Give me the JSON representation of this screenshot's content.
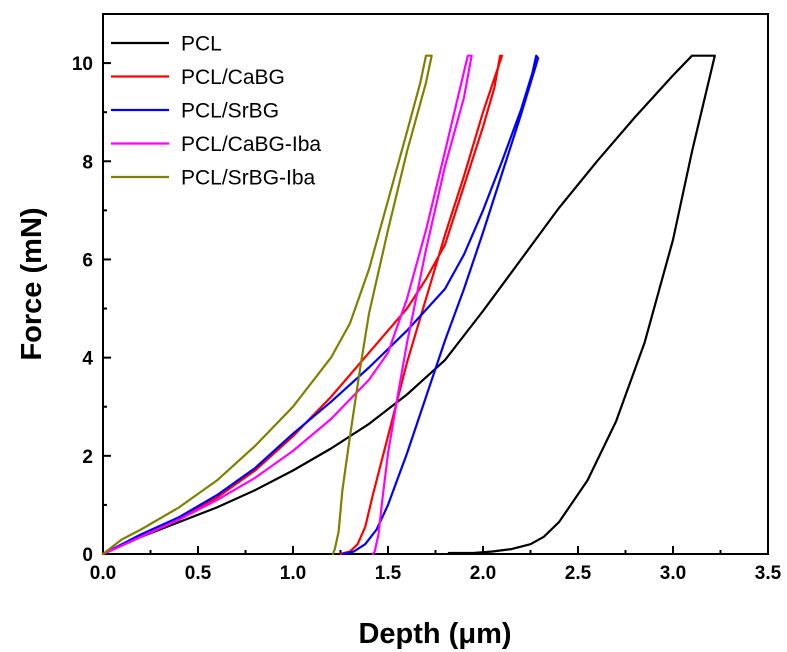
{
  "chart_data": {
    "type": "line",
    "xlabel": "Depth (μm)",
    "ylabel": "Force (mN)",
    "xlim": [
      0,
      3.5
    ],
    "ylim": [
      0,
      11
    ],
    "xticks": [
      "0.0",
      "0.5",
      "1.0",
      "1.5",
      "2.0",
      "2.5",
      "3.0",
      "3.5"
    ],
    "yticks": [
      "0",
      "2",
      "4",
      "6",
      "8",
      "10"
    ],
    "grid": false,
    "legend_position": "top-left",
    "series": [
      {
        "name": "PCL",
        "color": "#000000",
        "points": [
          [
            0,
            0
          ],
          [
            0.2,
            0.35
          ],
          [
            0.4,
            0.65
          ],
          [
            0.6,
            0.95
          ],
          [
            0.8,
            1.3
          ],
          [
            1.0,
            1.7
          ],
          [
            1.2,
            2.15
          ],
          [
            1.4,
            2.65
          ],
          [
            1.6,
            3.25
          ],
          [
            1.8,
            3.95
          ],
          [
            1.9,
            4.45
          ],
          [
            2.0,
            4.95
          ],
          [
            2.2,
            6.0
          ],
          [
            2.4,
            7.05
          ],
          [
            2.6,
            8.0
          ],
          [
            2.8,
            8.9
          ],
          [
            3.0,
            9.75
          ],
          [
            3.1,
            10.15
          ],
          [
            3.22,
            10.15
          ],
          [
            3.1,
            8.2
          ],
          [
            3.0,
            6.4
          ],
          [
            2.85,
            4.3
          ],
          [
            2.7,
            2.7
          ],
          [
            2.55,
            1.5
          ],
          [
            2.4,
            0.65
          ],
          [
            2.32,
            0.35
          ],
          [
            2.25,
            0.2
          ],
          [
            2.15,
            0.1
          ],
          [
            2.05,
            0.05
          ],
          [
            1.95,
            0.02
          ],
          [
            1.82,
            0.02
          ]
        ]
      },
      {
        "name": "PCL/CaBG",
        "color": "#ff0000",
        "points": [
          [
            0,
            0
          ],
          [
            0.2,
            0.35
          ],
          [
            0.4,
            0.7
          ],
          [
            0.6,
            1.15
          ],
          [
            0.8,
            1.7
          ],
          [
            1.0,
            2.4
          ],
          [
            1.2,
            3.2
          ],
          [
            1.4,
            4.1
          ],
          [
            1.6,
            5.0
          ],
          [
            1.7,
            5.6
          ],
          [
            1.8,
            6.3
          ],
          [
            1.9,
            7.5
          ],
          [
            2.0,
            8.7
          ],
          [
            2.06,
            9.5
          ],
          [
            2.09,
            10.15
          ],
          [
            2.1,
            10.15
          ],
          [
            2.0,
            9.0
          ],
          [
            1.9,
            7.7
          ],
          [
            1.8,
            6.5
          ],
          [
            1.7,
            5.2
          ],
          [
            1.6,
            3.9
          ],
          [
            1.5,
            2.4
          ],
          [
            1.42,
            1.2
          ],
          [
            1.38,
            0.55
          ],
          [
            1.34,
            0.2
          ],
          [
            1.3,
            0.05
          ],
          [
            1.25,
            0.0
          ]
        ]
      },
      {
        "name": "PCL/SrBG",
        "color": "#0000ff",
        "points": [
          [
            0,
            0
          ],
          [
            0.2,
            0.4
          ],
          [
            0.4,
            0.75
          ],
          [
            0.6,
            1.2
          ],
          [
            0.8,
            1.75
          ],
          [
            1.0,
            2.45
          ],
          [
            1.2,
            3.1
          ],
          [
            1.4,
            3.8
          ],
          [
            1.6,
            4.55
          ],
          [
            1.8,
            5.4
          ],
          [
            1.9,
            6.1
          ],
          [
            2.0,
            7.0
          ],
          [
            2.1,
            8.0
          ],
          [
            2.2,
            9.05
          ],
          [
            2.26,
            9.8
          ],
          [
            2.28,
            10.15
          ],
          [
            2.29,
            10.1
          ],
          [
            2.2,
            8.95
          ],
          [
            2.1,
            7.75
          ],
          [
            2.0,
            6.55
          ],
          [
            1.9,
            5.4
          ],
          [
            1.8,
            4.35
          ],
          [
            1.7,
            3.2
          ],
          [
            1.6,
            2.05
          ],
          [
            1.5,
            1.0
          ],
          [
            1.44,
            0.5
          ],
          [
            1.38,
            0.2
          ],
          [
            1.32,
            0.05
          ],
          [
            1.26,
            0.0
          ]
        ]
      },
      {
        "name": "PCL/CaBG-Iba",
        "color": "#ff00ff",
        "points": [
          [
            0,
            0
          ],
          [
            0.2,
            0.35
          ],
          [
            0.4,
            0.7
          ],
          [
            0.6,
            1.1
          ],
          [
            0.8,
            1.55
          ],
          [
            1.0,
            2.1
          ],
          [
            1.2,
            2.75
          ],
          [
            1.4,
            3.55
          ],
          [
            1.5,
            4.1
          ],
          [
            1.6,
            5.2
          ],
          [
            1.7,
            6.6
          ],
          [
            1.8,
            8.2
          ],
          [
            1.88,
            9.5
          ],
          [
            1.92,
            10.15
          ],
          [
            1.94,
            10.15
          ],
          [
            1.9,
            9.3
          ],
          [
            1.8,
            7.9
          ],
          [
            1.7,
            6.2
          ],
          [
            1.6,
            4.3
          ],
          [
            1.55,
            3.2
          ],
          [
            1.5,
            2.05
          ],
          [
            1.47,
            1.1
          ],
          [
            1.45,
            0.4
          ],
          [
            1.43,
            0.05
          ],
          [
            1.42,
            0.0
          ]
        ]
      },
      {
        "name": "PCL/SrBG-Iba",
        "color": "#808000",
        "points": [
          [
            0,
            0
          ],
          [
            0.1,
            0.3
          ],
          [
            0.2,
            0.5
          ],
          [
            0.4,
            0.95
          ],
          [
            0.6,
            1.5
          ],
          [
            0.8,
            2.2
          ],
          [
            1.0,
            3.0
          ],
          [
            1.2,
            4.0
          ],
          [
            1.3,
            4.7
          ],
          [
            1.4,
            5.8
          ],
          [
            1.5,
            7.2
          ],
          [
            1.6,
            8.6
          ],
          [
            1.67,
            9.6
          ],
          [
            1.7,
            10.15
          ],
          [
            1.73,
            10.15
          ],
          [
            1.7,
            9.6
          ],
          [
            1.6,
            8.2
          ],
          [
            1.5,
            6.6
          ],
          [
            1.4,
            4.9
          ],
          [
            1.35,
            3.7
          ],
          [
            1.3,
            2.4
          ],
          [
            1.26,
            1.3
          ],
          [
            1.24,
            0.45
          ],
          [
            1.22,
            0.1
          ],
          [
            1.21,
            0.0
          ]
        ]
      }
    ]
  }
}
